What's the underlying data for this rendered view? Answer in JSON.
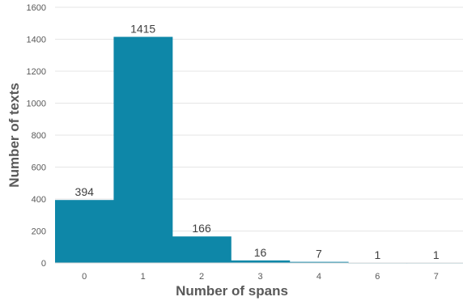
{
  "chart_data": {
    "type": "bar",
    "categories": [
      "0",
      "1",
      "2",
      "3",
      "4",
      "6",
      "7"
    ],
    "values": [
      394,
      1415,
      166,
      16,
      7,
      1,
      1
    ],
    "data_labels": [
      "394",
      "1415",
      "166",
      "16",
      "7",
      "1",
      "1"
    ],
    "title": "",
    "xlabel": "Number of spans",
    "ylabel": "Number of texts",
    "ylim": [
      0,
      1600
    ],
    "yticks": [
      0,
      200,
      400,
      600,
      800,
      1000,
      1200,
      1400,
      1600
    ],
    "grid": true,
    "bar_color": "#0e87a8",
    "legend": "none"
  }
}
